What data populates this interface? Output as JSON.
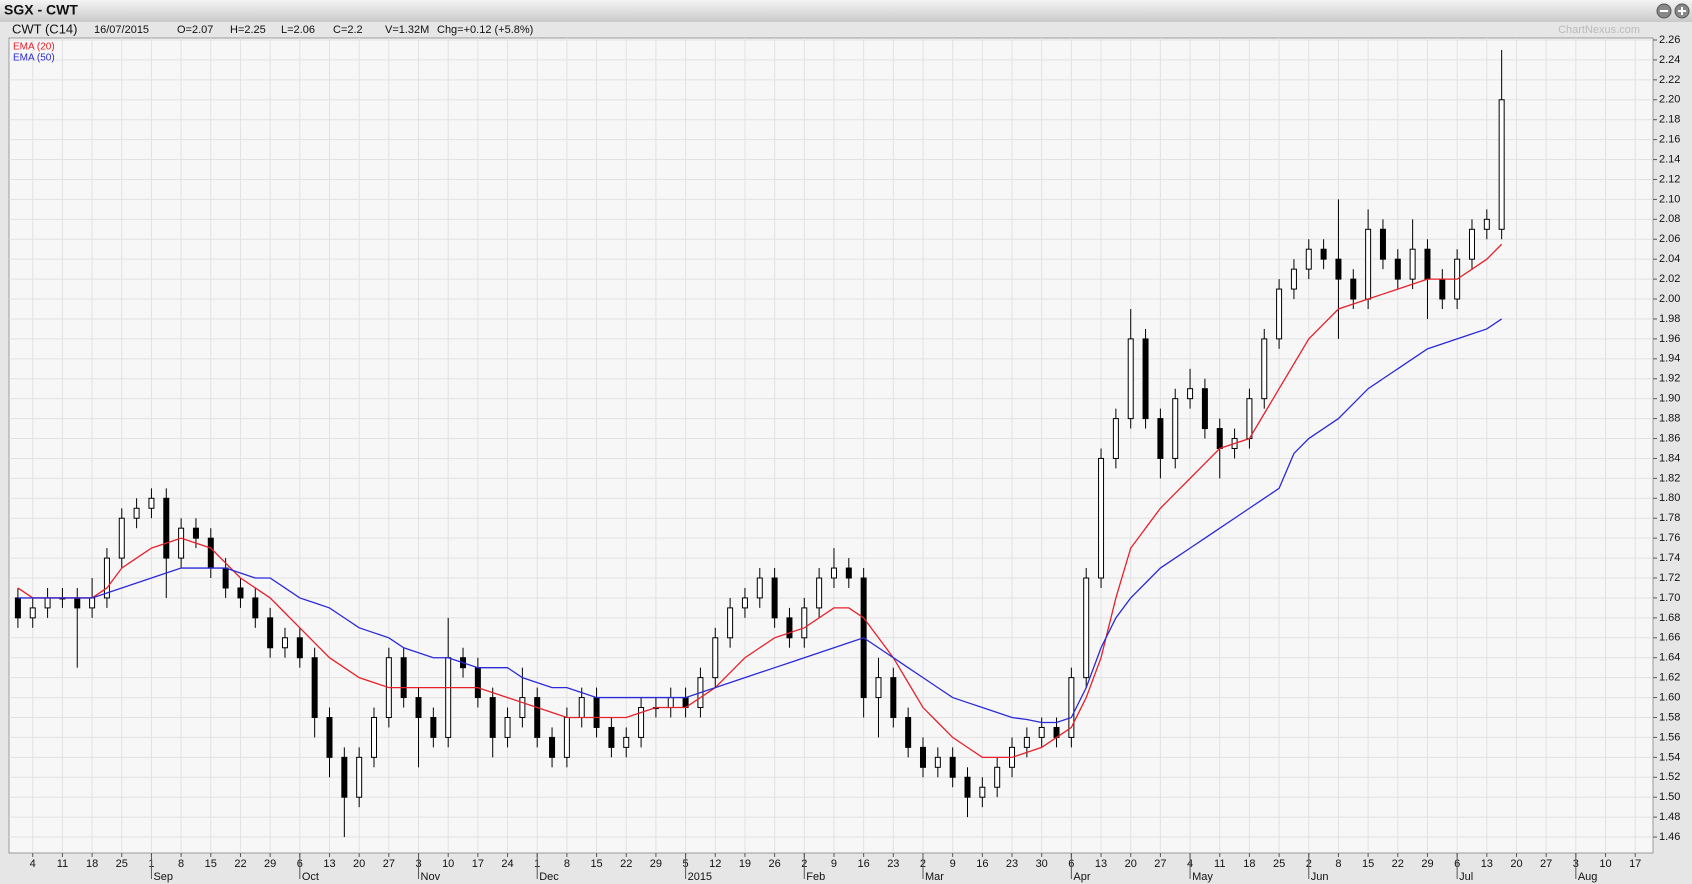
{
  "chart_data": {
    "type": "candlestick",
    "title": "SGX - CWT",
    "info": {
      "symbol": "CWT (C14)",
      "date": "16/07/2015",
      "open": "O=2.07",
      "high": "H=2.25",
      "low": "L=2.06",
      "close": "C=2.2",
      "volume": "V=1.32M",
      "change": "Chg=+0.12 (+5.8%)"
    },
    "watermark": "ChartNexus.com",
    "x": [
      -0.5,
      0,
      0.5,
      1,
      1.5,
      2,
      2.5,
      3,
      3.5,
      4,
      4.5,
      5,
      5.5,
      6,
      6.5,
      7,
      7.5,
      8,
      8.5,
      9,
      9.5,
      10,
      10.5,
      11,
      11.5,
      12,
      12.5,
      13,
      13.5,
      14,
      14.5,
      15,
      15.5,
      16,
      16.5,
      17,
      17.5,
      18,
      18.5,
      19,
      19.5,
      20,
      20.5,
      21,
      21.5,
      22,
      22.5,
      23,
      23.5,
      24,
      24.5,
      25,
      25.5,
      26,
      26.5,
      27,
      27.5,
      28,
      28.5,
      29,
      29.5,
      30,
      30.5,
      31,
      31.5,
      32,
      32.5,
      33,
      33.5,
      34,
      34.5,
      35,
      35.5,
      36,
      36.5,
      37,
      37.5,
      38,
      38.5,
      39,
      39.5,
      40,
      40.5,
      41,
      41.5,
      42,
      42.5,
      43,
      43.5,
      44,
      44.5,
      45,
      45.5,
      46,
      46.5,
      47,
      47.5,
      48,
      48.5,
      49,
      49.5
    ],
    "open": [
      1.7,
      1.68,
      1.69,
      1.7,
      1.7,
      1.69,
      1.7,
      1.74,
      1.78,
      1.79,
      1.8,
      1.74,
      1.77,
      1.76,
      1.73,
      1.71,
      1.7,
      1.68,
      1.65,
      1.66,
      1.64,
      1.58,
      1.54,
      1.5,
      1.54,
      1.58,
      1.64,
      1.6,
      1.58,
      1.56,
      1.64,
      1.63,
      1.6,
      1.56,
      1.58,
      1.6,
      1.56,
      1.54,
      1.58,
      1.6,
      1.57,
      1.55,
      1.56,
      1.59,
      1.59,
      1.6,
      1.59,
      1.62,
      1.66,
      1.69,
      1.7,
      1.72,
      1.68,
      1.66,
      1.69,
      1.72,
      1.73,
      1.72,
      1.6,
      1.62,
      1.58,
      1.55,
      1.53,
      1.54,
      1.52,
      1.5,
      1.51,
      1.53,
      1.55,
      1.56,
      1.57,
      1.56,
      1.62,
      1.72,
      1.84,
      1.88,
      1.96,
      1.88,
      1.84,
      1.9,
      1.91,
      1.87,
      1.85,
      1.86,
      1.9,
      1.96,
      2.01,
      2.03,
      2.05,
      2.04,
      2.02,
      2.0,
      2.07,
      2.04,
      2.02,
      2.05,
      2.02,
      2.0,
      2.04,
      2.07,
      2.07
    ],
    "high": [
      1.71,
      1.7,
      1.71,
      1.71,
      1.71,
      1.72,
      1.75,
      1.79,
      1.8,
      1.81,
      1.81,
      1.78,
      1.78,
      1.77,
      1.74,
      1.72,
      1.71,
      1.69,
      1.67,
      1.67,
      1.65,
      1.59,
      1.55,
      1.55,
      1.59,
      1.65,
      1.65,
      1.61,
      1.59,
      1.68,
      1.65,
      1.64,
      1.61,
      1.59,
      1.63,
      1.61,
      1.57,
      1.59,
      1.61,
      1.61,
      1.58,
      1.57,
      1.6,
      1.6,
      1.61,
      1.61,
      1.63,
      1.67,
      1.7,
      1.71,
      1.73,
      1.73,
      1.69,
      1.7,
      1.73,
      1.75,
      1.74,
      1.73,
      1.64,
      1.63,
      1.59,
      1.56,
      1.55,
      1.55,
      1.53,
      1.52,
      1.54,
      1.56,
      1.57,
      1.58,
      1.58,
      1.63,
      1.73,
      1.85,
      1.89,
      1.99,
      1.97,
      1.89,
      1.91,
      1.93,
      1.92,
      1.88,
      1.87,
      1.91,
      1.97,
      2.02,
      2.04,
      2.06,
      2.06,
      2.1,
      2.03,
      2.09,
      2.08,
      2.05,
      2.08,
      2.06,
      2.03,
      2.05,
      2.08,
      2.09,
      2.25
    ],
    "low": [
      1.67,
      1.67,
      1.68,
      1.69,
      1.63,
      1.68,
      1.69,
      1.73,
      1.77,
      1.78,
      1.7,
      1.73,
      1.75,
      1.72,
      1.7,
      1.69,
      1.67,
      1.64,
      1.64,
      1.63,
      1.56,
      1.52,
      1.46,
      1.49,
      1.53,
      1.57,
      1.59,
      1.53,
      1.55,
      1.55,
      1.62,
      1.59,
      1.54,
      1.55,
      1.57,
      1.55,
      1.53,
      1.53,
      1.57,
      1.56,
      1.54,
      1.54,
      1.55,
      1.58,
      1.58,
      1.58,
      1.58,
      1.61,
      1.65,
      1.68,
      1.69,
      1.67,
      1.65,
      1.65,
      1.68,
      1.71,
      1.71,
      1.58,
      1.56,
      1.57,
      1.54,
      1.52,
      1.52,
      1.51,
      1.48,
      1.49,
      1.5,
      1.52,
      1.54,
      1.55,
      1.55,
      1.55,
      1.61,
      1.71,
      1.83,
      1.87,
      1.87,
      1.82,
      1.83,
      1.89,
      1.86,
      1.82,
      1.84,
      1.85,
      1.89,
      1.95,
      2.0,
      2.02,
      2.03,
      1.96,
      1.99,
      1.99,
      2.03,
      2.01,
      2.01,
      1.98,
      1.99,
      1.99,
      2.03,
      2.06,
      2.06
    ],
    "close": [
      1.68,
      1.69,
      1.7,
      1.7,
      1.69,
      1.7,
      1.74,
      1.78,
      1.79,
      1.8,
      1.74,
      1.77,
      1.76,
      1.73,
      1.71,
      1.7,
      1.68,
      1.65,
      1.66,
      1.64,
      1.58,
      1.54,
      1.5,
      1.54,
      1.58,
      1.64,
      1.6,
      1.58,
      1.56,
      1.64,
      1.63,
      1.6,
      1.56,
      1.58,
      1.6,
      1.56,
      1.54,
      1.58,
      1.6,
      1.57,
      1.55,
      1.56,
      1.59,
      1.59,
      1.6,
      1.59,
      1.62,
      1.66,
      1.69,
      1.7,
      1.72,
      1.68,
      1.66,
      1.69,
      1.72,
      1.73,
      1.72,
      1.6,
      1.62,
      1.58,
      1.55,
      1.53,
      1.54,
      1.52,
      1.5,
      1.51,
      1.53,
      1.55,
      1.56,
      1.57,
      1.56,
      1.62,
      1.72,
      1.84,
      1.88,
      1.96,
      1.88,
      1.84,
      1.9,
      1.91,
      1.87,
      1.85,
      1.86,
      1.9,
      1.96,
      2.01,
      2.03,
      2.05,
      2.04,
      2.02,
      2.0,
      2.07,
      2.04,
      2.02,
      2.05,
      2.02,
      2.0,
      2.04,
      2.07,
      2.08,
      2.2
    ],
    "series": [
      {
        "name": "EMA (20)",
        "color": "#e8202a",
        "values": [
          1.71,
          1.7,
          1.7,
          1.7,
          1.7,
          1.7,
          1.71,
          1.73,
          1.74,
          1.75,
          1.755,
          1.76,
          1.755,
          1.75,
          1.735,
          1.72,
          1.71,
          1.7,
          1.685,
          1.67,
          1.655,
          1.64,
          1.63,
          1.62,
          1.615,
          1.61,
          1.61,
          1.61,
          1.61,
          1.61,
          1.61,
          1.61,
          1.605,
          1.6,
          1.595,
          1.59,
          1.585,
          1.58,
          1.58,
          1.58,
          1.58,
          1.58,
          1.585,
          1.59,
          1.59,
          1.59,
          1.6,
          1.61,
          1.625,
          1.64,
          1.65,
          1.66,
          1.665,
          1.67,
          1.68,
          1.69,
          1.69,
          1.68,
          1.66,
          1.64,
          1.615,
          1.59,
          1.575,
          1.56,
          1.55,
          1.54,
          1.54,
          1.54,
          1.545,
          1.55,
          1.56,
          1.57,
          1.6,
          1.64,
          1.7,
          1.75,
          1.77,
          1.79,
          1.805,
          1.82,
          1.835,
          1.85,
          1.855,
          1.86,
          1.885,
          1.91,
          1.935,
          1.96,
          1.975,
          1.99,
          1.995,
          2.0,
          2.005,
          2.01,
          2.015,
          2.02,
          2.02,
          2.02,
          2.03,
          2.04,
          2.055
        ]
      },
      {
        "name": "EMA (50)",
        "color": "#2a2ad8",
        "values": [
          1.7,
          1.7,
          1.7,
          1.7,
          1.7,
          1.7,
          1.705,
          1.71,
          1.715,
          1.72,
          1.725,
          1.73,
          1.73,
          1.73,
          1.73,
          1.725,
          1.72,
          1.72,
          1.71,
          1.7,
          1.695,
          1.69,
          1.68,
          1.67,
          1.665,
          1.66,
          1.65,
          1.645,
          1.64,
          1.64,
          1.635,
          1.63,
          1.63,
          1.63,
          1.62,
          1.615,
          1.61,
          1.61,
          1.605,
          1.6,
          1.6,
          1.6,
          1.6,
          1.6,
          1.6,
          1.6,
          1.605,
          1.61,
          1.615,
          1.62,
          1.625,
          1.63,
          1.635,
          1.64,
          1.645,
          1.65,
          1.655,
          1.66,
          1.65,
          1.64,
          1.63,
          1.62,
          1.61,
          1.6,
          1.595,
          1.59,
          1.585,
          1.58,
          1.578,
          1.575,
          1.575,
          1.58,
          1.61,
          1.65,
          1.68,
          1.7,
          1.715,
          1.73,
          1.74,
          1.75,
          1.76,
          1.77,
          1.78,
          1.79,
          1.8,
          1.81,
          1.845,
          1.86,
          1.87,
          1.88,
          1.895,
          1.91,
          1.92,
          1.93,
          1.94,
          1.95,
          1.955,
          1.96,
          1.965,
          1.97,
          1.98
        ]
      }
    ],
    "xlim": [
      -0.8,
      54.6
    ],
    "ylim": [
      1.444,
      2.262
    ],
    "yticks": [
      {
        "value": 1.46,
        "label": "1.46"
      },
      {
        "value": 1.48,
        "label": "1.48"
      },
      {
        "value": 1.5,
        "label": "1.50"
      },
      {
        "value": 1.52,
        "label": "1.52"
      },
      {
        "value": 1.54,
        "label": "1.54"
      },
      {
        "value": 1.56,
        "label": "1.56"
      },
      {
        "value": 1.58,
        "label": "1.58"
      },
      {
        "value": 1.6,
        "label": "1.60"
      },
      {
        "value": 1.62,
        "label": "1.62"
      },
      {
        "value": 1.64,
        "label": "1.64"
      },
      {
        "value": 1.66,
        "label": "1.66"
      },
      {
        "value": 1.68,
        "label": "1.68"
      },
      {
        "value": 1.7,
        "label": "1.70"
      },
      {
        "value": 1.72,
        "label": "1.72"
      },
      {
        "value": 1.74,
        "label": "1.74"
      },
      {
        "value": 1.76,
        "label": "1.76"
      },
      {
        "value": 1.78,
        "label": "1.78"
      },
      {
        "value": 1.8,
        "label": "1.80"
      },
      {
        "value": 1.82,
        "label": "1.82"
      },
      {
        "value": 1.84,
        "label": "1.84"
      },
      {
        "value": 1.86,
        "label": "1.86"
      },
      {
        "value": 1.88,
        "label": "1.88"
      },
      {
        "value": 1.9,
        "label": "1.90"
      },
      {
        "value": 1.92,
        "label": "1.92"
      },
      {
        "value": 1.94,
        "label": "1.94"
      },
      {
        "value": 1.96,
        "label": "1.96"
      },
      {
        "value": 1.98,
        "label": "1.98"
      },
      {
        "value": 2,
        "label": "2.00"
      },
      {
        "value": 2.02,
        "label": "2.02"
      },
      {
        "value": 2.04,
        "label": "2.04"
      },
      {
        "value": 2.06,
        "label": "2.06"
      },
      {
        "value": 2.08,
        "label": "2.08"
      },
      {
        "value": 2.1,
        "label": "2.10"
      },
      {
        "value": 2.12,
        "label": "2.12"
      },
      {
        "value": 2.14,
        "label": "2.14"
      },
      {
        "value": 2.16,
        "label": "2.16"
      },
      {
        "value": 2.18,
        "label": "2.18"
      },
      {
        "value": 2.2,
        "label": "2.20"
      },
      {
        "value": 2.22,
        "label": "2.22"
      },
      {
        "value": 2.24,
        "label": "2.24"
      },
      {
        "value": 2.26,
        "label": "2.26"
      }
    ],
    "xticks": [
      {
        "value": 0,
        "label": "4"
      },
      {
        "value": 1,
        "label": "11"
      },
      {
        "value": 2,
        "label": "18"
      },
      {
        "value": 3,
        "label": "25"
      },
      {
        "value": 4,
        "label": "1"
      },
      {
        "value": 5,
        "label": "8"
      },
      {
        "value": 6,
        "label": "15"
      },
      {
        "value": 7,
        "label": "22"
      },
      {
        "value": 8,
        "label": "29"
      },
      {
        "value": 9,
        "label": "6"
      },
      {
        "value": 10,
        "label": "13"
      },
      {
        "value": 11,
        "label": "20"
      },
      {
        "value": 12,
        "label": "27"
      },
      {
        "value": 13,
        "label": "3"
      },
      {
        "value": 14,
        "label": "10"
      },
      {
        "value": 15,
        "label": "17"
      },
      {
        "value": 16,
        "label": "24"
      },
      {
        "value": 17,
        "label": "1"
      },
      {
        "value": 18,
        "label": "8"
      },
      {
        "value": 19,
        "label": "15"
      },
      {
        "value": 20,
        "label": "22"
      },
      {
        "value": 21,
        "label": "29"
      },
      {
        "value": 22,
        "label": "5"
      },
      {
        "value": 23,
        "label": "12"
      },
      {
        "value": 24,
        "label": "19"
      },
      {
        "value": 25,
        "label": "26"
      },
      {
        "value": 26,
        "label": "2"
      },
      {
        "value": 27,
        "label": "9"
      },
      {
        "value": 28,
        "label": "16"
      },
      {
        "value": 29,
        "label": "23"
      },
      {
        "value": 30,
        "label": "2"
      },
      {
        "value": 31,
        "label": "9"
      },
      {
        "value": 32,
        "label": "16"
      },
      {
        "value": 33,
        "label": "23"
      },
      {
        "value": 34,
        "label": "30"
      },
      {
        "value": 35,
        "label": "6"
      },
      {
        "value": 36,
        "label": "13"
      },
      {
        "value": 37,
        "label": "20"
      },
      {
        "value": 38,
        "label": "27"
      },
      {
        "value": 39,
        "label": "4"
      },
      {
        "value": 40,
        "label": "11"
      },
      {
        "value": 41,
        "label": "18"
      },
      {
        "value": 42,
        "label": "25"
      },
      {
        "value": 43,
        "label": "2"
      },
      {
        "value": 44,
        "label": "8"
      },
      {
        "value": 45,
        "label": "15"
      },
      {
        "value": 46,
        "label": "22"
      },
      {
        "value": 47,
        "label": "29"
      },
      {
        "value": 48,
        "label": "6"
      },
      {
        "value": 49,
        "label": "13"
      },
      {
        "value": 50,
        "label": "20"
      },
      {
        "value": 51,
        "label": "27"
      },
      {
        "value": 52,
        "label": "3"
      },
      {
        "value": 53,
        "label": "10"
      },
      {
        "value": 54,
        "label": "17"
      }
    ],
    "month_ticks": [
      {
        "value": 4,
        "label": "Sep"
      },
      {
        "value": 9,
        "label": "Oct"
      },
      {
        "value": 13,
        "label": "Nov"
      },
      {
        "value": 17,
        "label": "Dec"
      },
      {
        "value": 22,
        "label": "2015"
      },
      {
        "value": 26,
        "label": "Feb"
      },
      {
        "value": 30,
        "label": "Mar"
      },
      {
        "value": 35,
        "label": "Apr"
      },
      {
        "value": 39,
        "label": "May"
      },
      {
        "value": 43,
        "label": "Jun"
      },
      {
        "value": 48,
        "label": "Jul"
      },
      {
        "value": 52,
        "label": "Aug"
      }
    ],
    "grid": true,
    "up_color": "#ffffff",
    "down_color": "#000000"
  }
}
